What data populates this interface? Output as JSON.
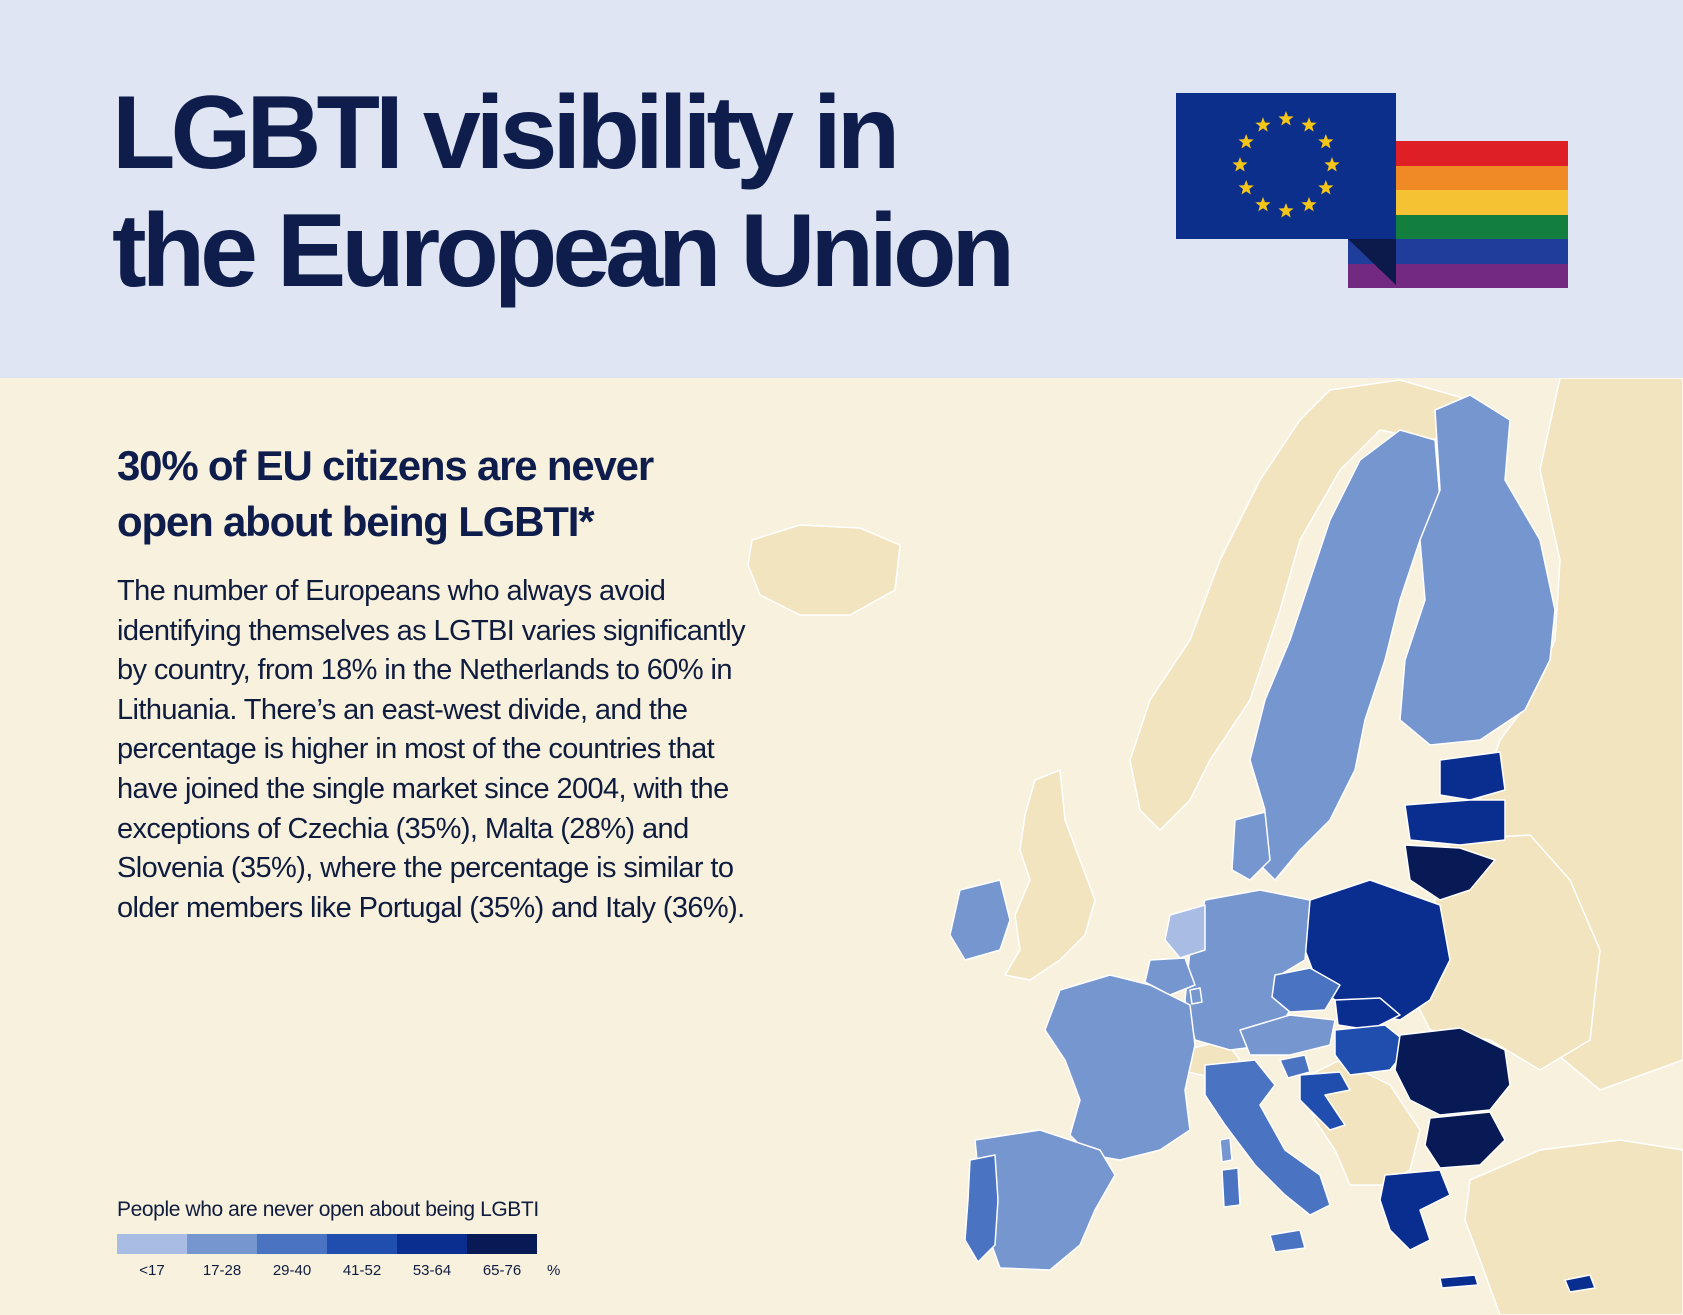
{
  "title": {
    "line1": "LGBTI visibility in",
    "line2": "the European Union"
  },
  "subtitle": "30% of EU citizens are never open about being LGBTI*",
  "body": "The number of Europeans who always avoid identifying themselves as LGTBI varies significantly by country, from 18% in the Netherlands to 60% in Lithuania. There’s an east-west divide, and the percentage is higher in most of the countries that have joined the single market since 2004, with the exceptions of Czechia (35%), Malta (28%)  and Slovenia (35%), where the percentage is similar to older members like Portugal (35%) and Italy (36%).",
  "legend": {
    "title": "People who are never open about being LGBTI",
    "unit": "%",
    "bins": [
      {
        "label": "<17",
        "color": "#a9bce3"
      },
      {
        "label": "17-28",
        "color": "#7696cf"
      },
      {
        "label": "29-40",
        "color": "#4a73c1"
      },
      {
        "label": "41-52",
        "color": "#1f4eae"
      },
      {
        "label": "53-64",
        "color": "#0a2e8f"
      },
      {
        "label": "65-76",
        "color": "#071a55"
      }
    ]
  },
  "map_colors": {
    "non_eu": "#f1e4bf",
    "background": "#f7f1de"
  },
  "flag_colors": {
    "eu_blue": "#0d2f8c",
    "eu_star": "#f5c518",
    "rainbow": [
      "#de1f26",
      "#f08a24",
      "#f4c232",
      "#137f3e",
      "#1f3d9a",
      "#73297f"
    ]
  }
}
